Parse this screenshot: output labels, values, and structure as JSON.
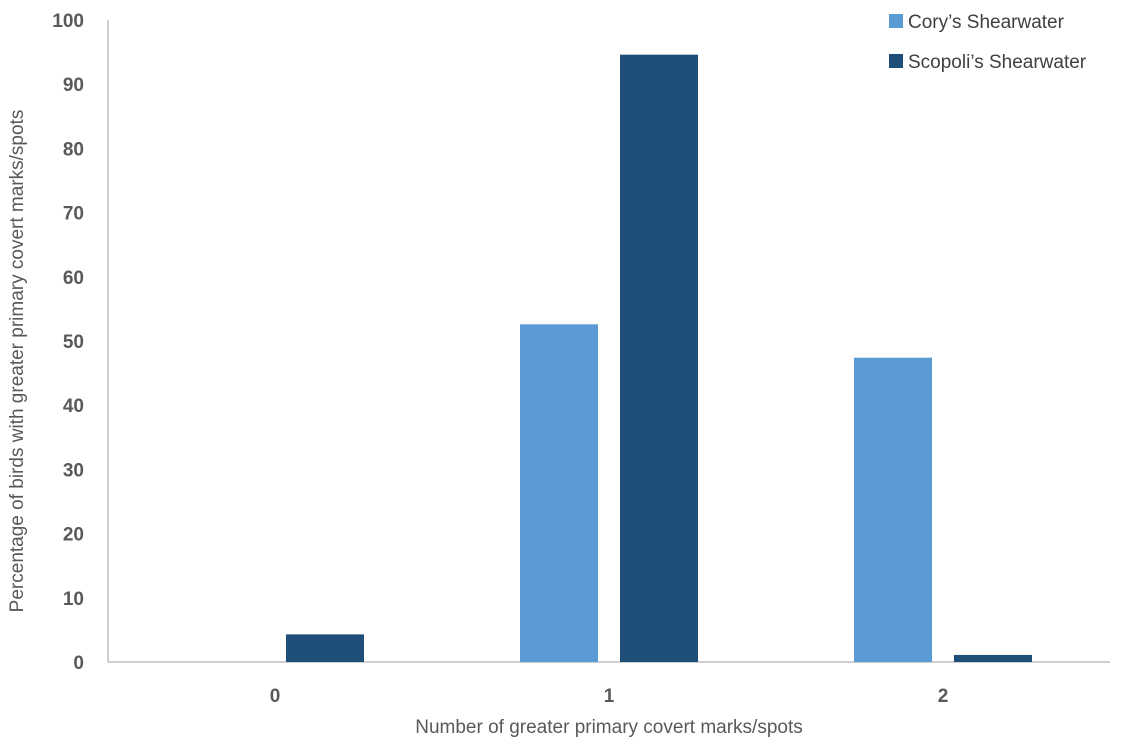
{
  "chart_data": {
    "type": "bar",
    "title": "",
    "xlabel": "Number of greater primary covert marks/spots",
    "ylabel": "Percentage of birds with greater primary covert marks/spots",
    "categories": [
      "0",
      "1",
      "2"
    ],
    "yticks": [
      "0",
      "10",
      "20",
      "30",
      "40",
      "50",
      "60",
      "70",
      "80",
      "90",
      "100"
    ],
    "ylim": [
      0,
      100
    ],
    "grid": false,
    "legend_position": "top-right",
    "series": [
      {
        "name": "Cory’s Shearwater",
        "color": "#5b9bd5",
        "values": [
          0,
          52.6,
          47.4
        ]
      },
      {
        "name": "Scopoli’s Shearwater",
        "color": "#1f4e79",
        "values": [
          4.3,
          94.6,
          1.1
        ]
      }
    ]
  }
}
